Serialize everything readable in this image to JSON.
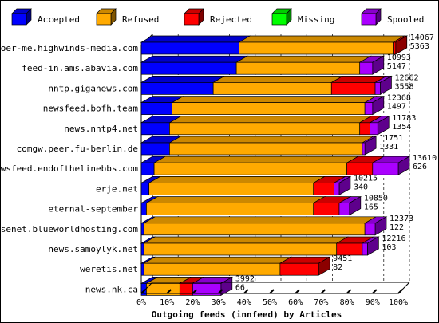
{
  "chart_data": {
    "type": "bar",
    "orientation": "horizontal",
    "stacked": "percent",
    "title": "",
    "xlabel": "Outgoing feeds (innfeed) by Articles",
    "ylabel": "",
    "xlim": [
      0,
      100
    ],
    "x_ticks": [
      "0%",
      "10%",
      "20%",
      "30%",
      "40%",
      "50%",
      "60%",
      "70%",
      "80%",
      "90%",
      "100%"
    ],
    "legend_position": "top",
    "categories": [
      "voer-me.highwinds-media.com",
      "feed-in.ams.abavia.com",
      "nntp.giganews.com",
      "newsfeed.bofh.team",
      "news.nntp4.net",
      "comgw.peer.fu-berlin.de",
      "newsfeed.endofthelinebbs.com",
      "erje.net",
      "eternal-september",
      "usenet.blueworldhosting.com",
      "news.samoylyk.net",
      "weretis.net",
      "news.nk.ca"
    ],
    "offered_labels": [
      "14067",
      "10993",
      "12662",
      "12368",
      "11783",
      "11751",
      "13610",
      "10215",
      "10850",
      "12373",
      "12216",
      "9451",
      "3992"
    ],
    "accepted_labels": [
      "5363",
      "5147",
      "3558",
      "1497",
      "1354",
      "1331",
      "626",
      "340",
      "165",
      "122",
      "103",
      "82",
      "66"
    ],
    "series": [
      {
        "name": "Accepted",
        "color": "#0000ff",
        "values": [
          38,
          37,
          28,
          12,
          11,
          11,
          5,
          3,
          2,
          1,
          1,
          1,
          2
        ]
      },
      {
        "name": "Refused",
        "color": "#ffaa00",
        "values": [
          60,
          48,
          46,
          75,
          74,
          75,
          75,
          64,
          65,
          86,
          75,
          53,
          13
        ]
      },
      {
        "name": "Rejected",
        "color": "#ff0000",
        "values": [
          1,
          0,
          17,
          0,
          4,
          0,
          10,
          8,
          10,
          0,
          10,
          15,
          5
        ]
      },
      {
        "name": "Missing",
        "color": "#00ff00",
        "values": [
          0,
          0,
          0,
          0,
          0,
          0,
          0,
          0,
          0,
          0,
          0,
          0,
          0
        ]
      },
      {
        "name": "Spooled",
        "color": "#aa00ff",
        "values": [
          0,
          5,
          2,
          3,
          3,
          1,
          10,
          2,
          4,
          4,
          2,
          0,
          11
        ]
      }
    ]
  }
}
